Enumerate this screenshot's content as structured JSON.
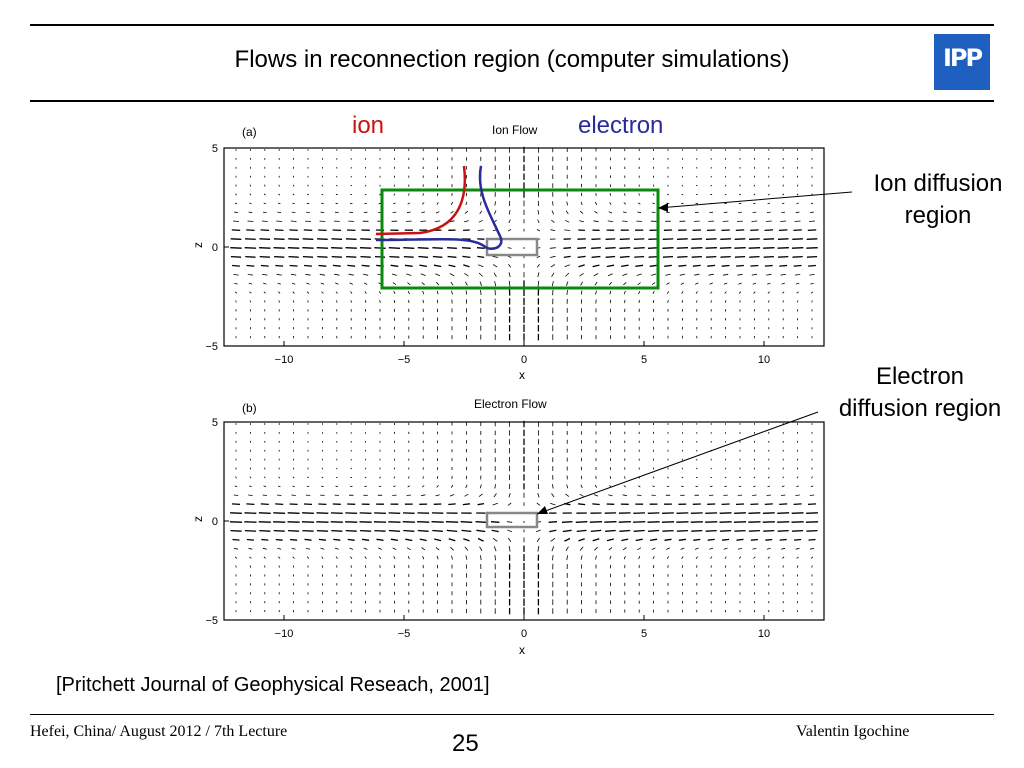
{
  "slide": {
    "title": "Flows in reconnection region (computer simulations)",
    "logo_text": "IPP",
    "label_ion": "ion",
    "label_electron": "electron",
    "annotation_ion_diffusion": [
      "Ion diffusion",
      "region"
    ],
    "annotation_electron_diffusion": [
      "Electron",
      "diffusion region"
    ],
    "citation": "[Pritchett Journal of Geophysical Reseach, 2001]",
    "footer_left": "Hefei, China/ August 2012 / 7th Lecture",
    "page_number": "25",
    "footer_right": "Valentin Igochine",
    "colors": {
      "ion": "#cc1111",
      "electron": "#2a2a9c",
      "ion_box": "#0a8a0a",
      "electron_box": "#888888",
      "logo": "#1f5fbf"
    }
  },
  "chart_data": [
    {
      "type": "vector_field",
      "panel_label": "(a)",
      "title": "Ion Flow",
      "xlabel": "x",
      "ylabel": "z",
      "xlim": [
        -12.5,
        12.5
      ],
      "ylim": [
        -5,
        5
      ],
      "xticks": [
        "−10",
        "−5",
        "0",
        "5",
        "10"
      ],
      "yticks": [
        "5",
        "0",
        "−5"
      ]
    },
    {
      "type": "vector_field",
      "panel_label": "(b)",
      "title": "Electron Flow",
      "xlabel": "x",
      "ylabel": "z",
      "xlim": [
        -12.5,
        12.5
      ],
      "ylim": [
        -5,
        5
      ],
      "xticks": [
        "−10",
        "−5",
        "0",
        "5",
        "10"
      ],
      "yticks": [
        "5",
        "0",
        "−5"
      ]
    }
  ]
}
